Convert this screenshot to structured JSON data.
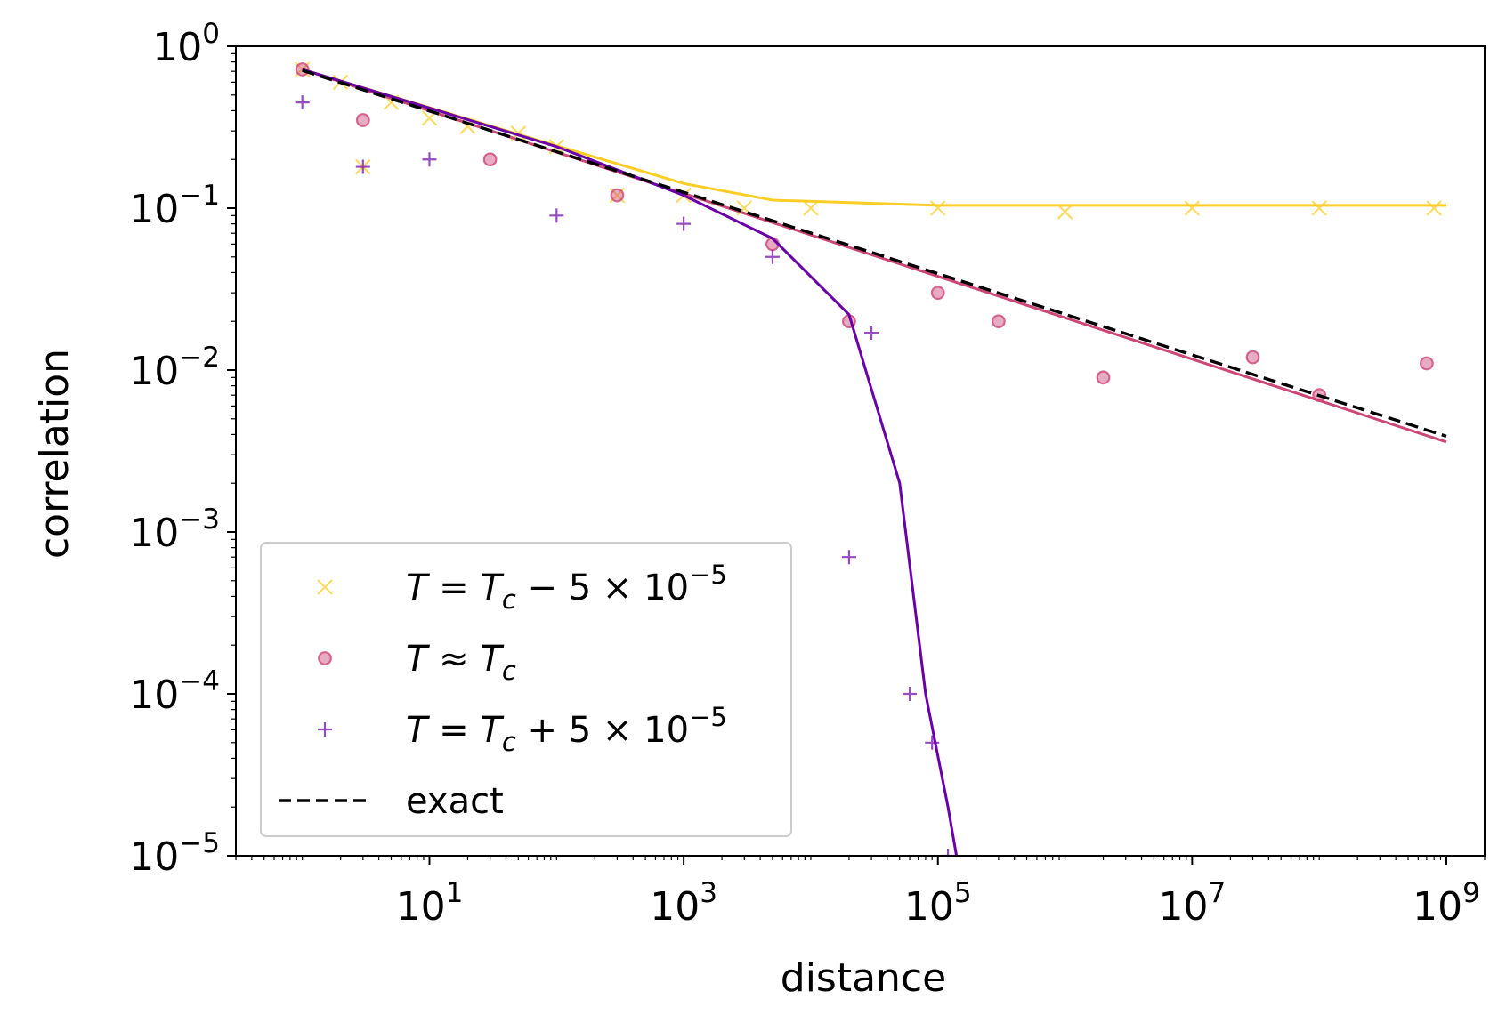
{
  "chart_data": {
    "type": "scatter",
    "xlabel": "distance",
    "ylabel": "correlation",
    "xscale": "log",
    "yscale": "log",
    "xlim": [
      0.3,
      2000000000.0
    ],
    "ylim": [
      1e-05,
      1
    ],
    "grid": false,
    "legend_position": "lower left",
    "x_ticks": [
      {
        "value": 10,
        "base": "10",
        "exp": "1"
      },
      {
        "value": 1000,
        "base": "10",
        "exp": "3"
      },
      {
        "value": 100000,
        "base": "10",
        "exp": "5"
      },
      {
        "value": 10000000,
        "base": "10",
        "exp": "7"
      },
      {
        "value": 1000000000,
        "base": "10",
        "exp": "9"
      }
    ],
    "y_ticks": [
      {
        "value": 1,
        "base": "10",
        "exp": "0"
      },
      {
        "value": 0.1,
        "base": "10",
        "exp": "−1"
      },
      {
        "value": 0.01,
        "base": "10",
        "exp": "−2"
      },
      {
        "value": 0.001,
        "base": "10",
        "exp": "−3"
      },
      {
        "value": 0.0001,
        "base": "10",
        "exp": "−4"
      },
      {
        "value": 1e-05,
        "base": "10",
        "exp": "−5"
      }
    ],
    "series": [
      {
        "name": "T = T_c − 5 × 10^−5",
        "legend": {
          "lhs": "T",
          "op": " = ",
          "sym": "T",
          "sub": "c",
          "rest": " − 5 × 10",
          "exp": "−5"
        },
        "marker": "x",
        "color": "#fccd25",
        "fit": {
          "x": [
            1,
            100,
            1000,
            5000,
            100000,
            1000000000
          ],
          "y": [
            0.72,
            0.243,
            0.142,
            0.112,
            0.104,
            0.104
          ]
        },
        "points": {
          "x": [
            1,
            2,
            3,
            5,
            10,
            20,
            50,
            100,
            300,
            1000,
            3000,
            10000,
            100000,
            1000000,
            10000000,
            100000000,
            800000000
          ],
          "y": [
            0.72,
            0.6,
            0.18,
            0.45,
            0.36,
            0.32,
            0.29,
            0.24,
            0.12,
            0.12,
            0.1,
            0.1,
            0.1,
            0.095,
            0.1,
            0.1,
            0.1
          ]
        }
      },
      {
        "name": "T ≈ T_c",
        "legend": {
          "lhs": "T",
          "op": " ≈ ",
          "sym": "T",
          "sub": "c",
          "rest": "",
          "exp": ""
        },
        "marker": "o",
        "color": "#cc4778",
        "fit": {
          "x": [
            1,
            1000000000
          ],
          "y": [
            0.72,
            0.0036
          ]
        },
        "points": {
          "x": [
            1,
            3,
            30,
            300,
            5000,
            20000,
            100000,
            300000,
            2000000,
            30000000,
            100000000,
            700000000
          ],
          "y": [
            0.72,
            0.35,
            0.2,
            0.12,
            0.06,
            0.02,
            0.03,
            0.02,
            0.009,
            0.012,
            0.007,
            0.011
          ]
        }
      },
      {
        "name": "T = T_c + 5 × 10^−5",
        "legend": {
          "lhs": "T",
          "op": " = ",
          "sym": "T",
          "sub": "c",
          "rest": " + 5 × 10",
          "exp": "−5"
        },
        "marker": "+",
        "color": "#6a00a8",
        "fit": {
          "x": [
            1,
            100,
            1000,
            5000,
            20000,
            50000,
            80000,
            120000,
            140000
          ],
          "y": [
            0.72,
            0.24,
            0.12,
            0.065,
            0.022,
            0.002,
            0.0001,
            2e-05,
            1e-05
          ]
        },
        "points": {
          "x": [
            1,
            3,
            10,
            100,
            1000,
            5000,
            20000,
            30000,
            60000,
            90000,
            120000
          ],
          "y": [
            0.45,
            0.18,
            0.2,
            0.09,
            0.08,
            0.05,
            0.0007,
            0.017,
            0.0001,
            5e-05,
            1e-05
          ]
        }
      },
      {
        "name": "exact",
        "legend": {
          "text": "exact"
        },
        "marker": "dashed-line",
        "color": "#000000",
        "line": {
          "x": [
            1,
            1000000000
          ],
          "y": [
            0.71,
            0.0039
          ]
        }
      }
    ]
  }
}
